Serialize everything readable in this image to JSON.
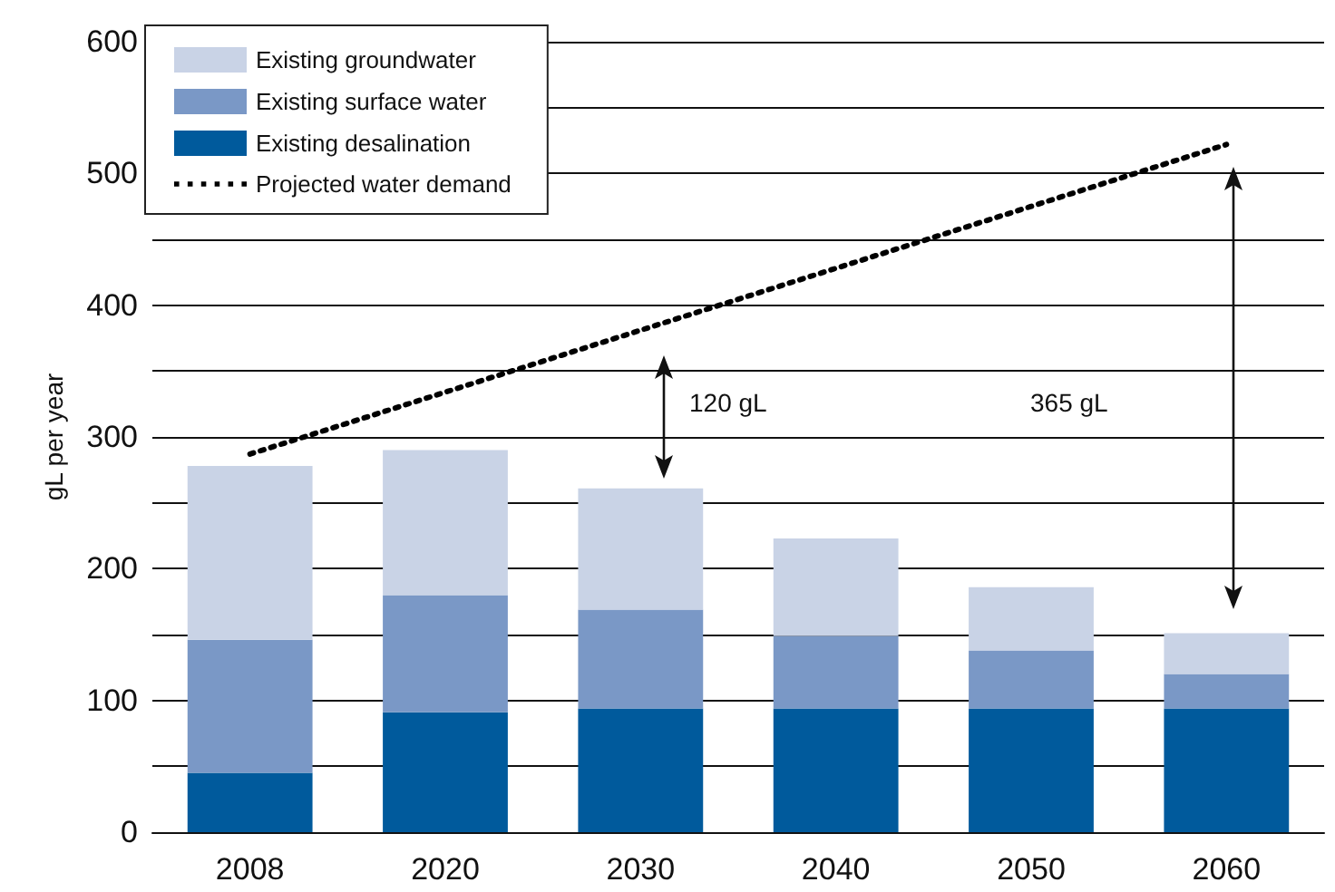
{
  "chart_data": {
    "type": "bar",
    "stacked": true,
    "ylabel": "gL per year",
    "categories": [
      "2008",
      "2020",
      "2030",
      "2040",
      "2050",
      "2060"
    ],
    "series": [
      {
        "name": "Existing desalination",
        "color": "#005a9c",
        "values": [
          45,
          91,
          94,
          94,
          94,
          94
        ]
      },
      {
        "name": "Existing surface water",
        "color": "#7a98c6",
        "values": [
          101,
          89,
          75,
          55,
          44,
          26
        ]
      },
      {
        "name": "Existing groundwater",
        "color": "#c9d3e6",
        "values": [
          132,
          110,
          92,
          74,
          48,
          31
        ]
      },
      {
        "name": "Projected water demand",
        "type": "line",
        "color": "#000000",
        "line_style": "dotted",
        "marker": "none",
        "values": [
          287,
          334,
          381,
          428,
          475,
          522
        ]
      }
    ],
    "ylim": [
      0,
      600
    ],
    "yticks": [
      0,
      {
        "value": 50,
        "label": null
      },
      100,
      {
        "value": 150,
        "label": null
      },
      200,
      {
        "value": 250,
        "label": null
      },
      300,
      {
        "value": 350,
        "label": null
      },
      400,
      {
        "value": 450,
        "label": null
      },
      500,
      {
        "value": 550,
        "label": null
      },
      600
    ],
    "grid": "y",
    "legend": "top left",
    "annotations": [
      "120 gL",
      "365 gL"
    ]
  }
}
